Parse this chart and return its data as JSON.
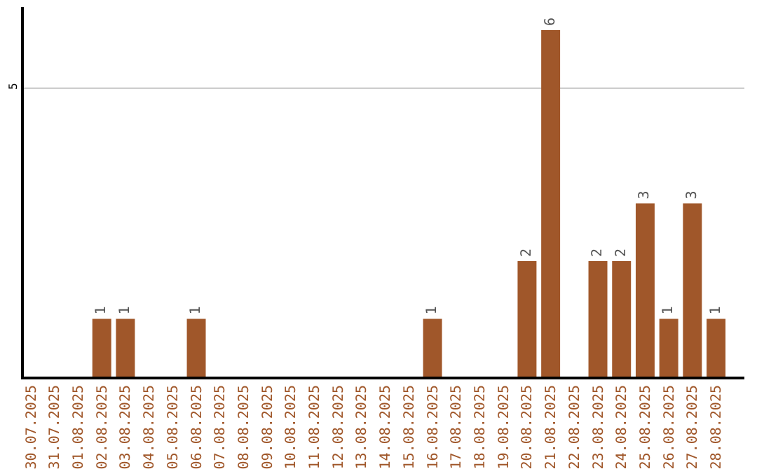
{
  "chart_data": {
    "type": "bar",
    "categories": [
      "30.07.2025",
      "31.07.2025",
      "01.08.2025",
      "02.08.2025",
      "03.08.2025",
      "04.08.2025",
      "05.08.2025",
      "06.08.2025",
      "07.08.2025",
      "08.08.2025",
      "09.08.2025",
      "10.08.2025",
      "11.08.2025",
      "12.08.2025",
      "13.08.2025",
      "14.08.2025",
      "15.08.2025",
      "16.08.2025",
      "17.08.2025",
      "18.08.2025",
      "19.08.2025",
      "20.08.2025",
      "21.08.2025",
      "22.08.2025",
      "23.08.2025",
      "24.08.2025",
      "25.08.2025",
      "26.08.2025",
      "27.08.2025",
      "28.08.2025"
    ],
    "values": [
      0,
      0,
      0,
      1,
      1,
      0,
      0,
      1,
      0,
      0,
      0,
      0,
      0,
      0,
      0,
      0,
      0,
      1,
      0,
      0,
      0,
      2,
      6,
      0,
      2,
      2,
      3,
      1,
      3,
      1
    ],
    "value_labels": [
      null,
      null,
      null,
      "1",
      "1",
      null,
      null,
      "1",
      null,
      null,
      null,
      null,
      null,
      null,
      null,
      null,
      null,
      "1",
      null,
      null,
      null,
      "2",
      "6",
      null,
      "2",
      "2",
      "3",
      "1",
      "3",
      "1"
    ],
    "color": "#a0572a",
    "ylim": [
      0,
      6.4
    ],
    "yticks": [
      5
    ],
    "grid": "y",
    "legend": false
  }
}
